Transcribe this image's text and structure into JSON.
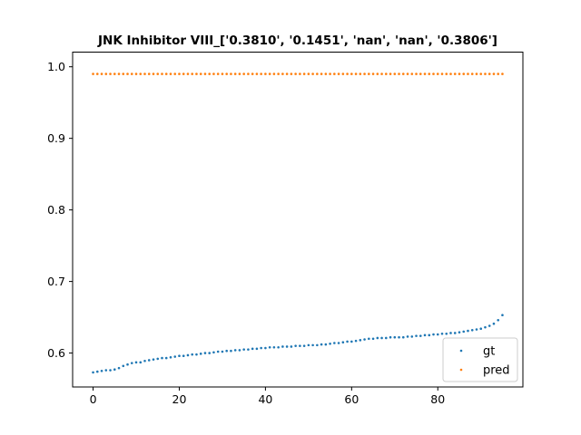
{
  "chart_data": {
    "type": "scatter",
    "title": "JNK Inhibitor VIII_['0.3810', '0.1451', 'nan', 'nan', '0.3806']",
    "xlabel": "",
    "ylabel": "",
    "xlim": [
      -4.75,
      99.75
    ],
    "ylim": [
      0.5526,
      1.0205
    ],
    "xticks": [
      0,
      20,
      40,
      60,
      80
    ],
    "yticks": [
      0.6,
      0.7,
      0.8,
      0.9,
      1.0
    ],
    "xtick_labels": [
      "0",
      "20",
      "40",
      "60",
      "80"
    ],
    "ytick_labels": [
      "0.6",
      "0.7",
      "0.8",
      "0.9",
      "1.0"
    ],
    "grid": false,
    "legend_position": "lower-right",
    "series": [
      {
        "name": "gt",
        "color": "#1f77b4",
        "x": [
          0,
          1,
          2,
          3,
          4,
          5,
          6,
          7,
          8,
          9,
          10,
          11,
          12,
          13,
          14,
          15,
          16,
          17,
          18,
          19,
          20,
          21,
          22,
          23,
          24,
          25,
          26,
          27,
          28,
          29,
          30,
          31,
          32,
          33,
          34,
          35,
          36,
          37,
          38,
          39,
          40,
          41,
          42,
          43,
          44,
          45,
          46,
          47,
          48,
          49,
          50,
          51,
          52,
          53,
          54,
          55,
          56,
          57,
          58,
          59,
          60,
          61,
          62,
          63,
          64,
          65,
          66,
          67,
          68,
          69,
          70,
          71,
          72,
          73,
          74,
          75,
          76,
          77,
          78,
          79,
          80,
          81,
          82,
          83,
          84,
          85,
          86,
          87,
          88,
          89,
          90,
          91,
          92,
          93,
          94,
          95
        ],
        "y": [
          0.573,
          0.574,
          0.575,
          0.576,
          0.576,
          0.577,
          0.579,
          0.582,
          0.584,
          0.586,
          0.587,
          0.587,
          0.589,
          0.59,
          0.591,
          0.592,
          0.593,
          0.593,
          0.594,
          0.595,
          0.596,
          0.596,
          0.597,
          0.598,
          0.598,
          0.599,
          0.6,
          0.6,
          0.601,
          0.602,
          0.602,
          0.603,
          0.603,
          0.604,
          0.604,
          0.605,
          0.605,
          0.606,
          0.606,
          0.607,
          0.607,
          0.608,
          0.608,
          0.608,
          0.609,
          0.609,
          0.609,
          0.61,
          0.61,
          0.61,
          0.611,
          0.611,
          0.611,
          0.612,
          0.612,
          0.613,
          0.614,
          0.614,
          0.615,
          0.616,
          0.616,
          0.617,
          0.618,
          0.619,
          0.62,
          0.62,
          0.621,
          0.621,
          0.621,
          0.622,
          0.622,
          0.622,
          0.622,
          0.623,
          0.623,
          0.624,
          0.624,
          0.625,
          0.625,
          0.626,
          0.626,
          0.627,
          0.627,
          0.628,
          0.628,
          0.629,
          0.63,
          0.631,
          0.632,
          0.633,
          0.634,
          0.636,
          0.638,
          0.641,
          0.646,
          0.653
        ]
      },
      {
        "name": "pred",
        "color": "#ff7f0e",
        "x": [
          0,
          1,
          2,
          3,
          4,
          5,
          6,
          7,
          8,
          9,
          10,
          11,
          12,
          13,
          14,
          15,
          16,
          17,
          18,
          19,
          20,
          21,
          22,
          23,
          24,
          25,
          26,
          27,
          28,
          29,
          30,
          31,
          32,
          33,
          34,
          35,
          36,
          37,
          38,
          39,
          40,
          41,
          42,
          43,
          44,
          45,
          46,
          47,
          48,
          49,
          50,
          51,
          52,
          53,
          54,
          55,
          56,
          57,
          58,
          59,
          60,
          61,
          62,
          63,
          64,
          65,
          66,
          67,
          68,
          69,
          70,
          71,
          72,
          73,
          74,
          75,
          76,
          77,
          78,
          79,
          80,
          81,
          82,
          83,
          84,
          85,
          86,
          87,
          88,
          89,
          90,
          91,
          92,
          93,
          94,
          95
        ],
        "y": [
          0.99,
          0.99,
          0.99,
          0.99,
          0.99,
          0.99,
          0.99,
          0.99,
          0.99,
          0.99,
          0.99,
          0.99,
          0.99,
          0.99,
          0.99,
          0.99,
          0.99,
          0.99,
          0.99,
          0.99,
          0.99,
          0.99,
          0.99,
          0.99,
          0.99,
          0.99,
          0.99,
          0.99,
          0.99,
          0.99,
          0.99,
          0.99,
          0.99,
          0.99,
          0.99,
          0.99,
          0.99,
          0.99,
          0.99,
          0.99,
          0.99,
          0.99,
          0.99,
          0.99,
          0.99,
          0.99,
          0.99,
          0.99,
          0.99,
          0.99,
          0.99,
          0.99,
          0.99,
          0.99,
          0.99,
          0.99,
          0.99,
          0.99,
          0.99,
          0.99,
          0.99,
          0.99,
          0.99,
          0.99,
          0.99,
          0.99,
          0.99,
          0.99,
          0.99,
          0.99,
          0.99,
          0.99,
          0.99,
          0.99,
          0.99,
          0.99,
          0.99,
          0.99,
          0.99,
          0.99,
          0.99,
          0.99,
          0.99,
          0.99,
          0.99,
          0.99,
          0.99,
          0.99,
          0.99,
          0.99,
          0.99,
          0.99,
          0.99,
          0.99,
          0.99,
          0.99
        ]
      }
    ]
  }
}
